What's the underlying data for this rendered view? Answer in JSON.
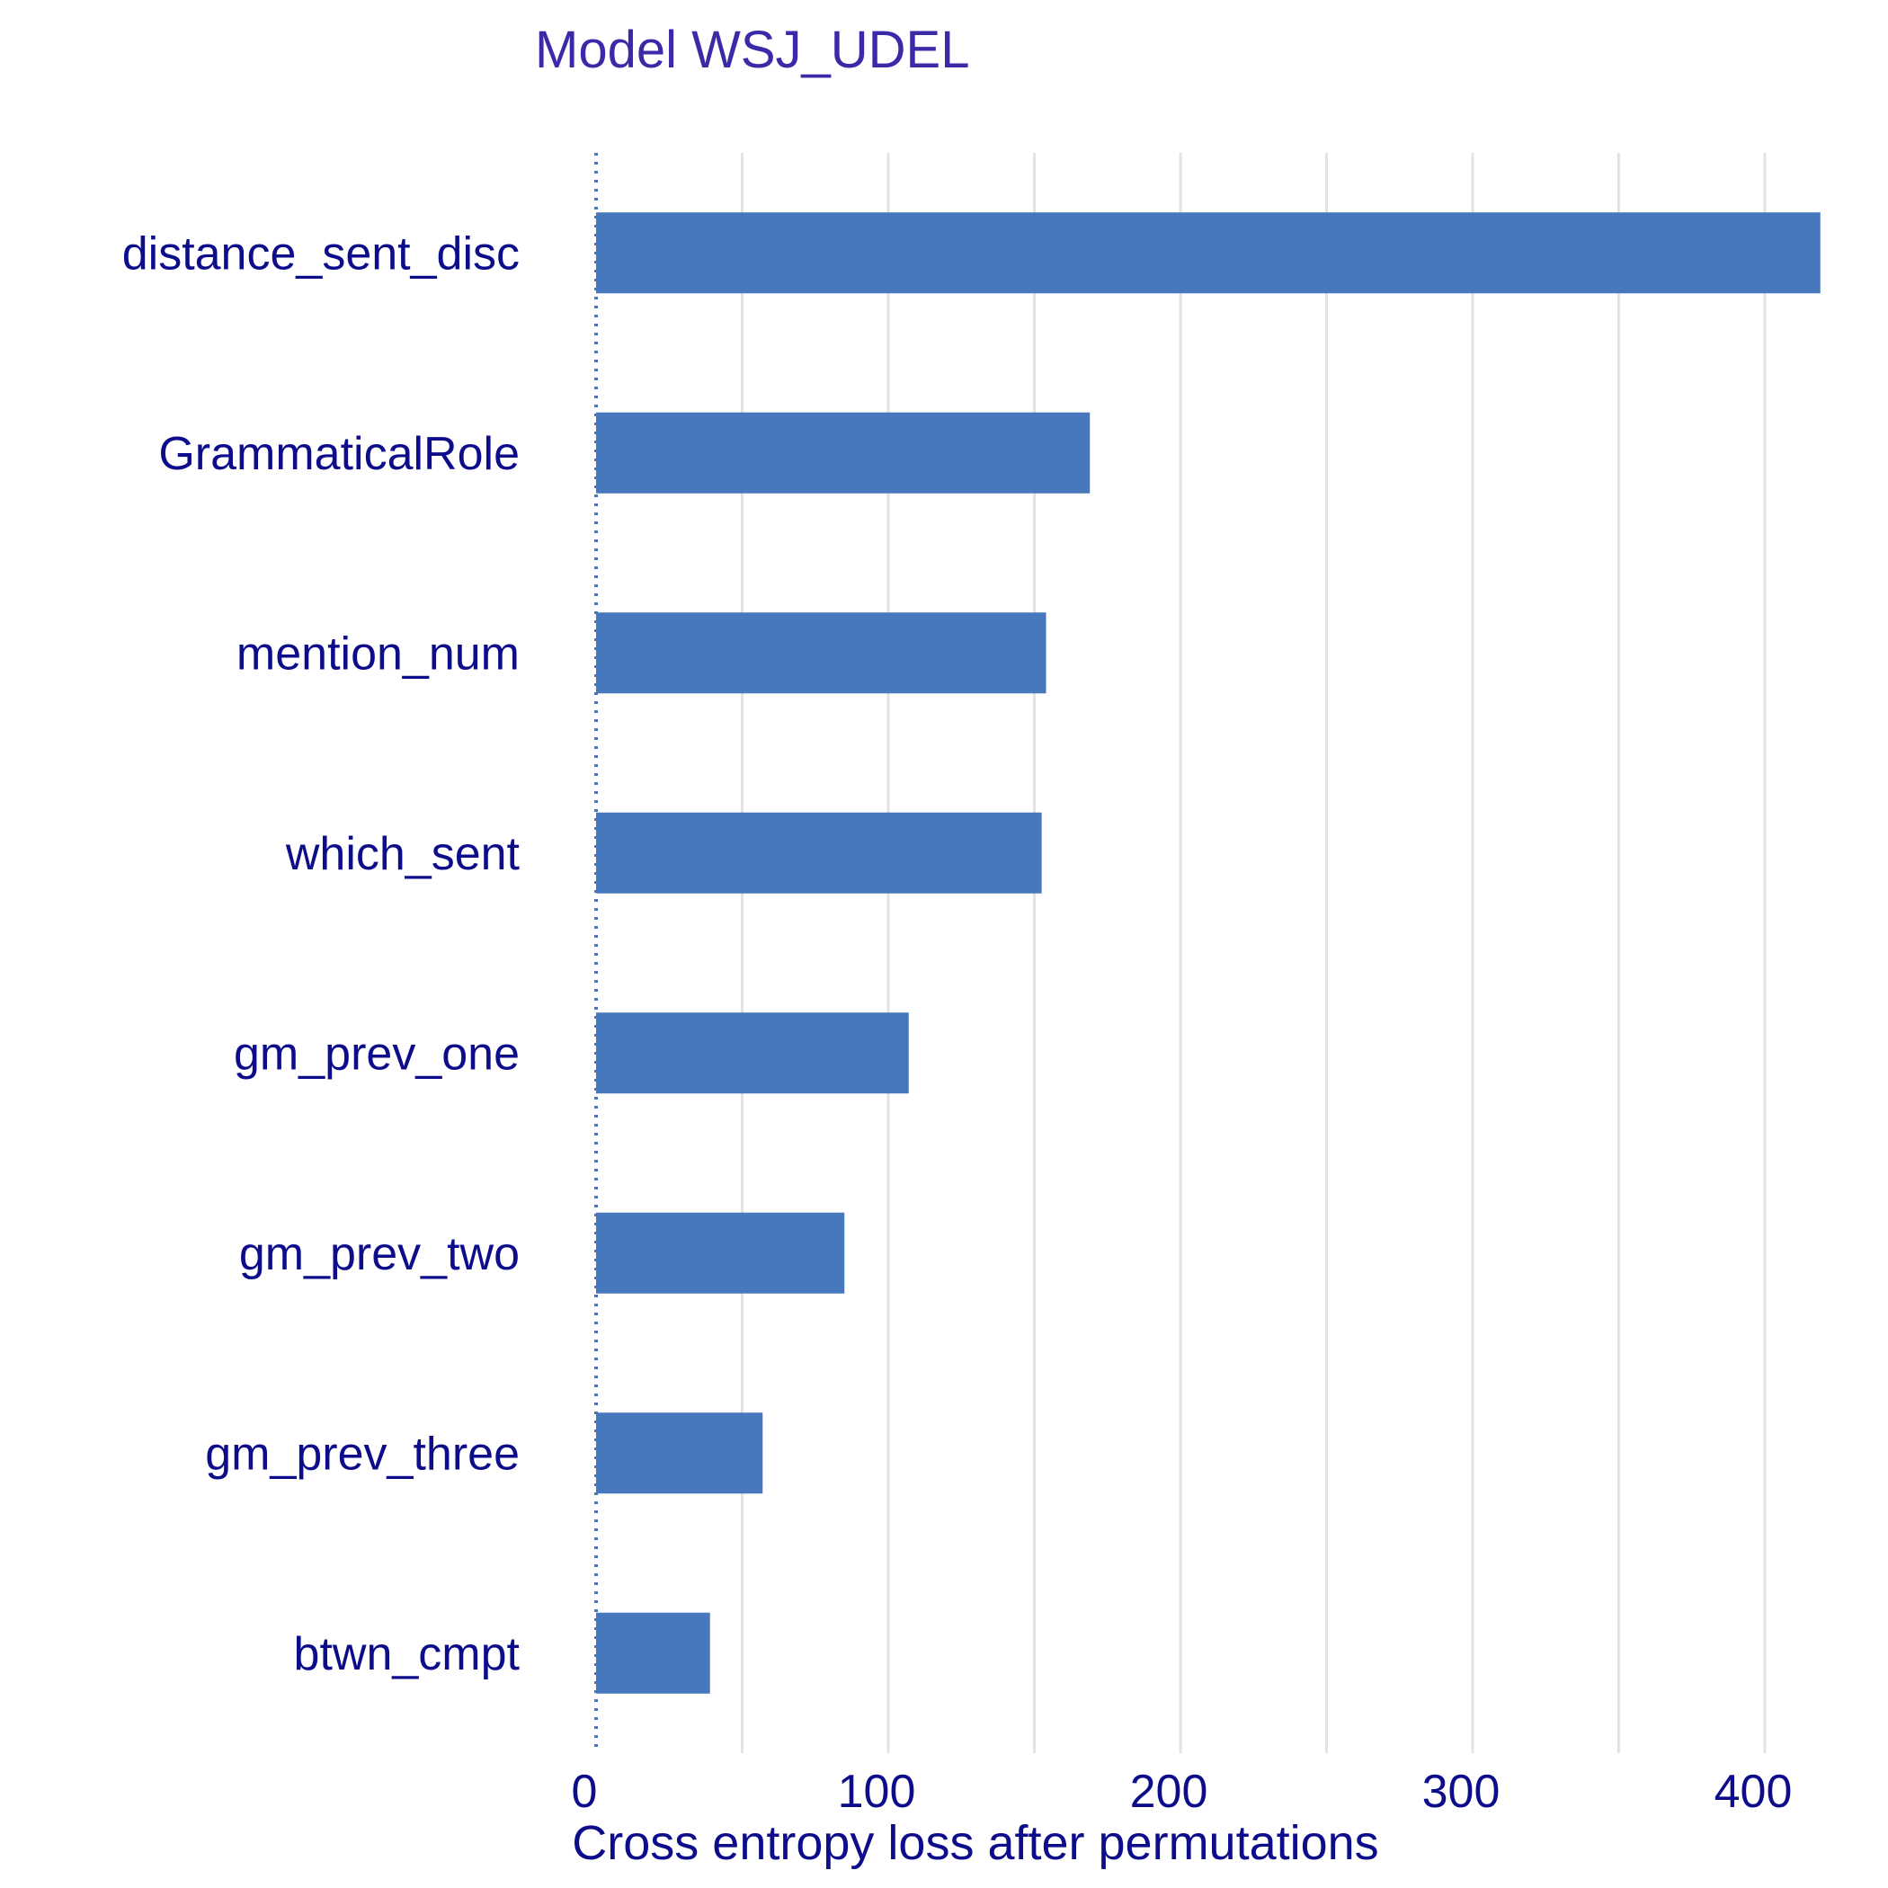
{
  "chart_data": {
    "type": "bar",
    "orientation": "horizontal",
    "title": "Model WSJ_UDEL",
    "xlabel": "Cross entropy loss after permutations",
    "ylabel": "",
    "categories": [
      "distance_sent_disc",
      "GrammaticalRole",
      "mention_num",
      "which_sent",
      "gm_prev_one",
      "gm_prev_two",
      "gm_prev_three",
      "btwn_cmpt"
    ],
    "values": [
      419,
      169,
      154,
      152.5,
      107,
      85,
      57,
      39
    ],
    "xlim": [
      -5,
      421
    ],
    "x_ticks": [
      0,
      100,
      200,
      300,
      400
    ],
    "x_tick_labels": [
      "0",
      "100",
      "200",
      "300",
      "400"
    ],
    "reference_line": 0,
    "grid": "vertical",
    "legend": "none",
    "colors": {
      "bar": "#4778bd",
      "text": "#0d0d8c",
      "title": "#3a2aa8",
      "grid": "#e3e3e3",
      "reference_line": "#4778bd"
    }
  }
}
